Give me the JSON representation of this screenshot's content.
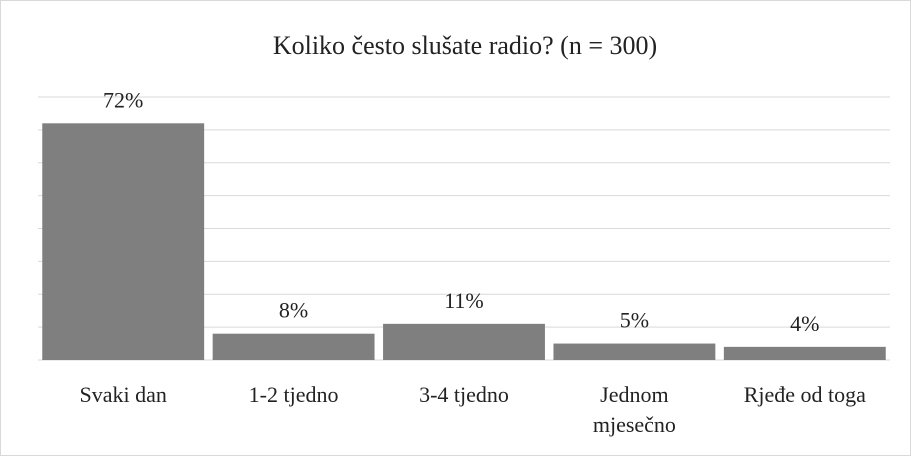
{
  "chart_data": {
    "type": "bar",
    "title": "Koliko često slušate radio? (n = 300)",
    "categories": [
      "Svaki dan",
      "1-2 tjedno",
      "3-4 tjedno",
      "Jednom mjesečno",
      "Rjeđe od toga"
    ],
    "values": [
      72,
      8,
      11,
      5,
      4
    ],
    "value_labels": [
      "72%",
      "8%",
      "11%",
      "5%",
      "4%"
    ],
    "color": "#7f7f7f",
    "ylim": [
      0,
      80
    ],
    "yticks": [
      0,
      10,
      20,
      30,
      40,
      50,
      60,
      70,
      80
    ],
    "grid": true
  }
}
